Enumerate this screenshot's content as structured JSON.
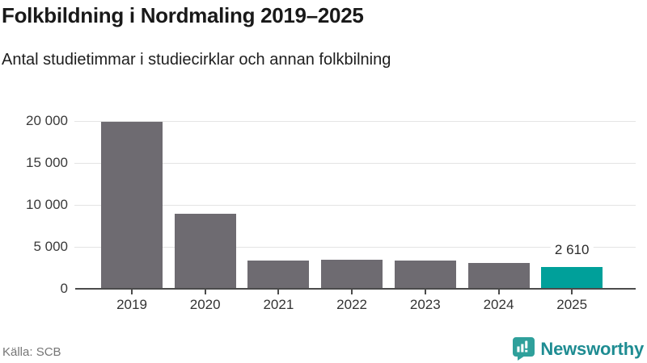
{
  "title": "Folkbildning i Nordmaling 2019–2025",
  "subtitle": "Antal studietimmar i studiecirklar och annan folkbilning",
  "chart_data": {
    "type": "bar",
    "categories": [
      "2019",
      "2020",
      "2021",
      "2022",
      "2023",
      "2024",
      "2025"
    ],
    "values": [
      19900,
      8950,
      3350,
      3450,
      3350,
      3100,
      2610
    ],
    "highlight_index": 6,
    "data_labels": [
      {
        "index": 6,
        "text": "2 610"
      }
    ],
    "yticks": [
      0,
      5000,
      10000,
      15000,
      20000
    ],
    "ytick_labels": [
      "0",
      "5 000",
      "10 000",
      "15 000",
      "20 000"
    ],
    "ylim": [
      0,
      21500
    ],
    "xlabel": "",
    "ylabel": "",
    "grid": true,
    "legend": "none",
    "bar_color": "#6E6B71",
    "highlight_color": "#00A09A",
    "grid_color": "#E4E4E4",
    "axis_color": "#4B4B4B"
  },
  "footer": {
    "source": "Källa: SCB",
    "brand": "Newsworthy",
    "brand_color": "#1E8C92",
    "brand_icon_color": "#2FA09B",
    "brand_icon": "speech-bubble-bar-chart-icon"
  }
}
